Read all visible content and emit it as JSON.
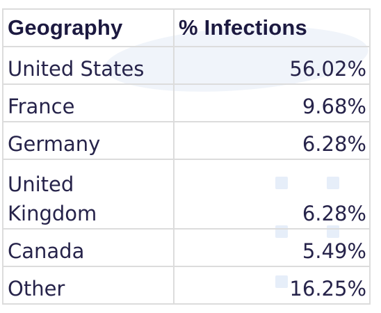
{
  "table": {
    "headers": [
      "Geography",
      "% Infections"
    ],
    "rows": [
      {
        "geography": "United States",
        "infections": "56.02%"
      },
      {
        "geography": "France",
        "infections": "9.68%"
      },
      {
        "geography": "Germany",
        "infections": "6.28%"
      },
      {
        "geography": "United Kingdom",
        "infections": "6.28%"
      },
      {
        "geography": "Canada",
        "infections": "5.49%"
      },
      {
        "geography": "Other",
        "infections": "16.25%"
      }
    ]
  },
  "colors": {
    "text": "#1e1b3d",
    "grid_border": "#dcdcdc",
    "background": "#ffffff"
  }
}
